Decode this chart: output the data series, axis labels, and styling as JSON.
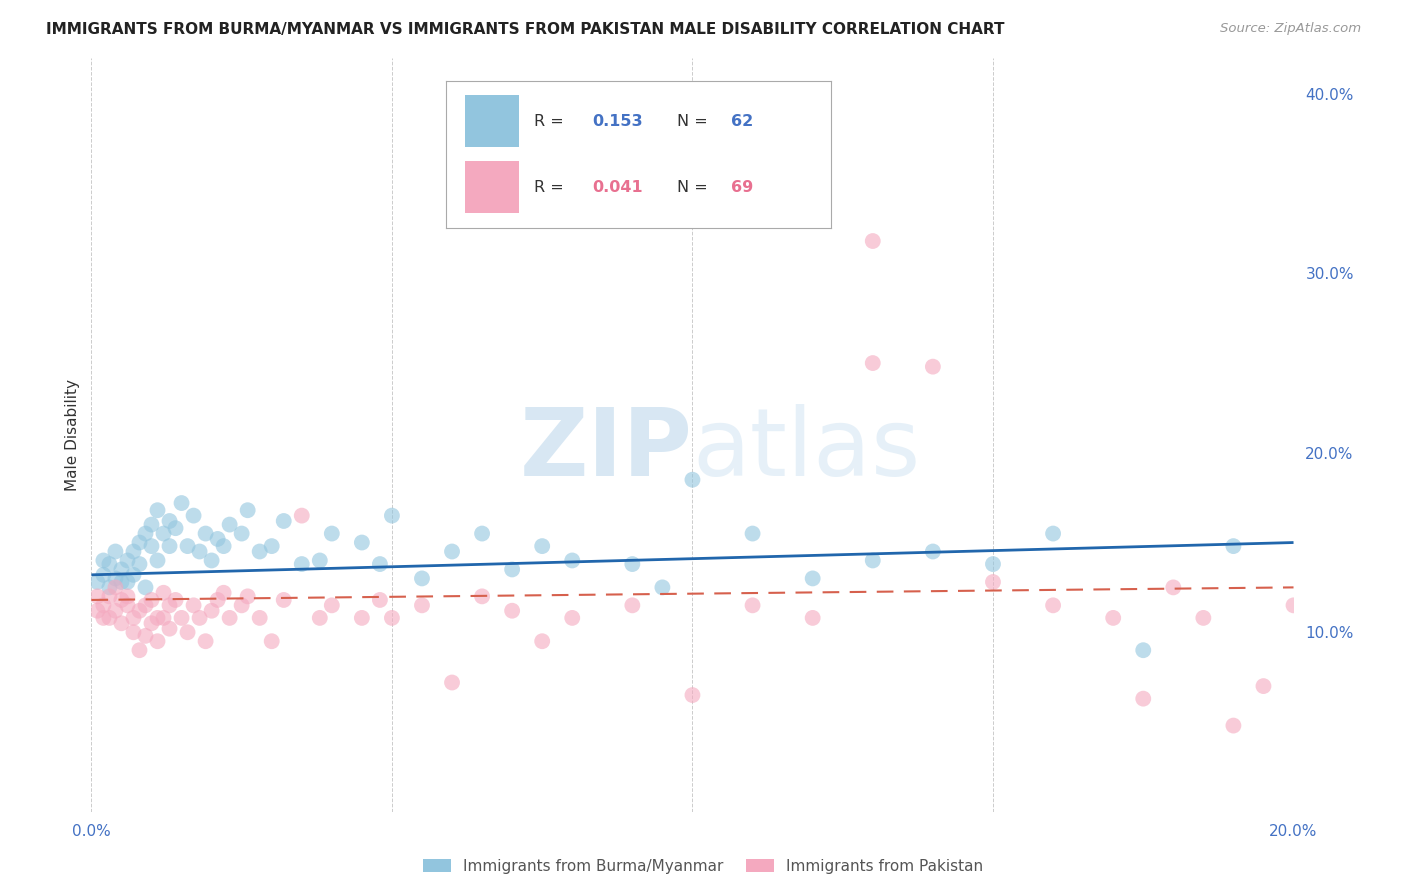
{
  "title": "IMMIGRANTS FROM BURMA/MYANMAR VS IMMIGRANTS FROM PAKISTAN MALE DISABILITY CORRELATION CHART",
  "source": "Source: ZipAtlas.com",
  "ylabel": "Male Disability",
  "xlim": [
    0.0,
    0.2
  ],
  "ylim": [
    0.0,
    0.42
  ],
  "x_tick_positions": [
    0.0,
    0.05,
    0.1,
    0.15,
    0.2
  ],
  "x_tick_labels": [
    "0.0%",
    "",
    "",
    "",
    "20.0%"
  ],
  "y_tick_positions": [
    0.1,
    0.2,
    0.3,
    0.4
  ],
  "y_tick_labels": [
    "10.0%",
    "20.0%",
    "30.0%",
    "40.0%"
  ],
  "legend_entries": [
    {
      "label": "Immigrants from Burma/Myanmar",
      "color": "#92c5de",
      "line_color": "#2166ac",
      "R": 0.153,
      "N": 62
    },
    {
      "label": "Immigrants from Pakistan",
      "color": "#f4a9bf",
      "line_color": "#d6604d",
      "R": 0.041,
      "N": 69
    }
  ],
  "watermark_zip": "ZIP",
  "watermark_atlas": "atlas",
  "background_color": "#ffffff",
  "grid_color": "#cccccc",
  "burma_scatter_x": [
    0.001,
    0.002,
    0.002,
    0.003,
    0.003,
    0.004,
    0.004,
    0.005,
    0.005,
    0.006,
    0.006,
    0.007,
    0.007,
    0.008,
    0.008,
    0.009,
    0.009,
    0.01,
    0.01,
    0.011,
    0.011,
    0.012,
    0.013,
    0.013,
    0.014,
    0.015,
    0.016,
    0.017,
    0.018,
    0.019,
    0.02,
    0.021,
    0.022,
    0.023,
    0.025,
    0.026,
    0.028,
    0.03,
    0.032,
    0.035,
    0.038,
    0.04,
    0.045,
    0.048,
    0.05,
    0.055,
    0.06,
    0.065,
    0.07,
    0.075,
    0.08,
    0.09,
    0.095,
    0.1,
    0.11,
    0.12,
    0.13,
    0.14,
    0.15,
    0.16,
    0.175,
    0.19
  ],
  "burma_scatter_y": [
    0.128,
    0.132,
    0.14,
    0.125,
    0.138,
    0.13,
    0.145,
    0.128,
    0.135,
    0.14,
    0.128,
    0.132,
    0.145,
    0.138,
    0.15,
    0.125,
    0.155,
    0.148,
    0.16,
    0.14,
    0.168,
    0.155,
    0.148,
    0.162,
    0.158,
    0.172,
    0.148,
    0.165,
    0.145,
    0.155,
    0.14,
    0.152,
    0.148,
    0.16,
    0.155,
    0.168,
    0.145,
    0.148,
    0.162,
    0.138,
    0.14,
    0.155,
    0.15,
    0.138,
    0.165,
    0.13,
    0.145,
    0.155,
    0.135,
    0.148,
    0.14,
    0.138,
    0.125,
    0.185,
    0.155,
    0.13,
    0.14,
    0.145,
    0.138,
    0.155,
    0.09,
    0.148
  ],
  "pakistan_scatter_x": [
    0.001,
    0.001,
    0.002,
    0.002,
    0.003,
    0.003,
    0.004,
    0.004,
    0.005,
    0.005,
    0.006,
    0.006,
    0.007,
    0.007,
    0.008,
    0.008,
    0.009,
    0.009,
    0.01,
    0.01,
    0.011,
    0.011,
    0.012,
    0.012,
    0.013,
    0.013,
    0.014,
    0.015,
    0.016,
    0.017,
    0.018,
    0.019,
    0.02,
    0.021,
    0.022,
    0.023,
    0.025,
    0.026,
    0.028,
    0.03,
    0.032,
    0.035,
    0.038,
    0.04,
    0.045,
    0.048,
    0.05,
    0.055,
    0.06,
    0.065,
    0.07,
    0.075,
    0.08,
    0.09,
    0.1,
    0.11,
    0.12,
    0.13,
    0.14,
    0.15,
    0.16,
    0.17,
    0.175,
    0.18,
    0.185,
    0.19,
    0.195,
    0.2,
    0.13
  ],
  "pakistan_scatter_y": [
    0.12,
    0.112,
    0.108,
    0.115,
    0.12,
    0.108,
    0.125,
    0.112,
    0.118,
    0.105,
    0.115,
    0.12,
    0.108,
    0.1,
    0.112,
    0.09,
    0.115,
    0.098,
    0.105,
    0.118,
    0.108,
    0.095,
    0.122,
    0.108,
    0.115,
    0.102,
    0.118,
    0.108,
    0.1,
    0.115,
    0.108,
    0.095,
    0.112,
    0.118,
    0.122,
    0.108,
    0.115,
    0.12,
    0.108,
    0.095,
    0.118,
    0.165,
    0.108,
    0.115,
    0.108,
    0.118,
    0.108,
    0.115,
    0.072,
    0.12,
    0.112,
    0.095,
    0.108,
    0.115,
    0.065,
    0.115,
    0.108,
    0.318,
    0.248,
    0.128,
    0.115,
    0.108,
    0.063,
    0.125,
    0.108,
    0.048,
    0.07,
    0.115,
    0.25
  ]
}
